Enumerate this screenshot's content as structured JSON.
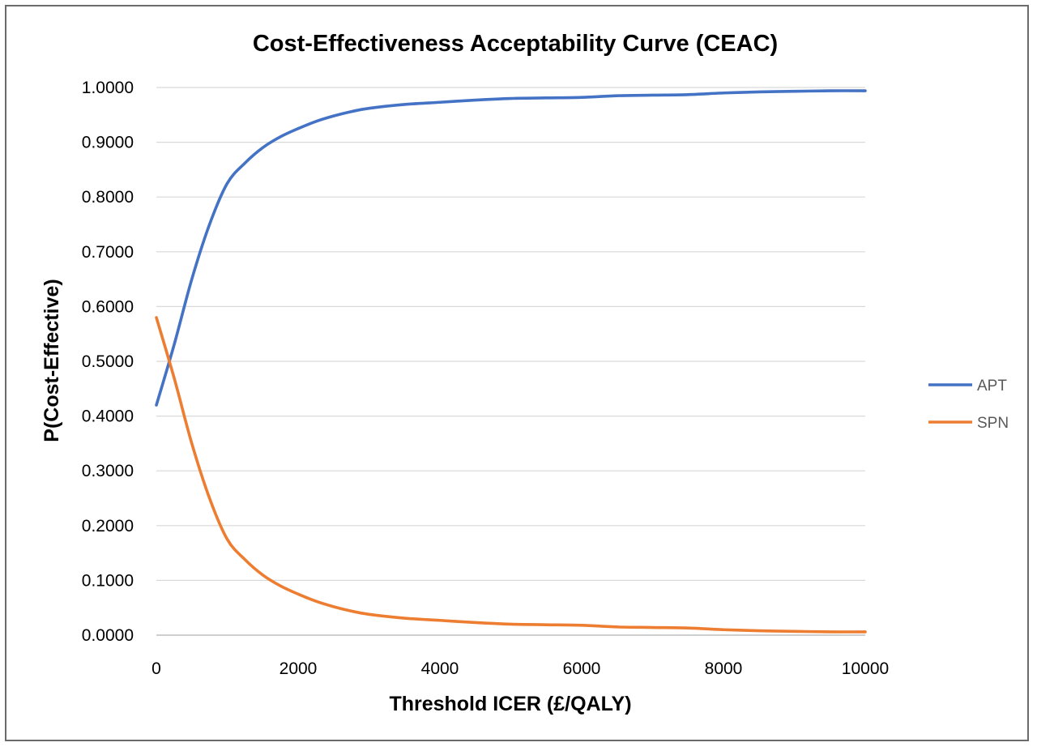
{
  "chart_data": {
    "type": "line",
    "title": "Cost-Effectiveness Acceptability Curve (CEAC)",
    "xlabel": "Threshold ICER (£/QALY)",
    "ylabel": "P(Cost-Effective)",
    "xlim": [
      0,
      10000
    ],
    "ylim": [
      0,
      1
    ],
    "x_ticks": [
      0,
      2000,
      4000,
      6000,
      8000,
      10000
    ],
    "x_tick_labels": [
      "0",
      "2000",
      "4000",
      "6000",
      "8000",
      "10000"
    ],
    "y_ticks": [
      0,
      0.1,
      0.2,
      0.3,
      0.4,
      0.5,
      0.6,
      0.7,
      0.8,
      0.9,
      1.0
    ],
    "y_tick_labels": [
      "0.0000",
      "0.1000",
      "0.2000",
      "0.3000",
      "0.4000",
      "0.5000",
      "0.6000",
      "0.7000",
      "0.8000",
      "0.9000",
      "1.0000"
    ],
    "grid": true,
    "legend_position": "right",
    "x": [
      0,
      250,
      500,
      750,
      1000,
      1250,
      1500,
      1750,
      2000,
      2250,
      2500,
      2750,
      3000,
      3500,
      4000,
      4500,
      5000,
      5500,
      6000,
      6500,
      7000,
      7500,
      8000,
      8500,
      9000,
      9500,
      10000
    ],
    "series": [
      {
        "name": "APT",
        "color": "#4472c4",
        "values": [
          0.42,
          0.53,
          0.65,
          0.75,
          0.825,
          0.862,
          0.89,
          0.91,
          0.925,
          0.938,
          0.948,
          0.956,
          0.962,
          0.969,
          0.973,
          0.977,
          0.98,
          0.981,
          0.982,
          0.985,
          0.986,
          0.987,
          0.99,
          0.992,
          0.993,
          0.994,
          0.994
        ]
      },
      {
        "name": "SPN",
        "color": "#ed7d31",
        "values": [
          0.58,
          0.47,
          0.35,
          0.25,
          0.175,
          0.138,
          0.11,
          0.09,
          0.075,
          0.062,
          0.052,
          0.044,
          0.038,
          0.031,
          0.027,
          0.023,
          0.02,
          0.019,
          0.018,
          0.015,
          0.014,
          0.013,
          0.01,
          0.008,
          0.007,
          0.006,
          0.006
        ]
      }
    ]
  }
}
